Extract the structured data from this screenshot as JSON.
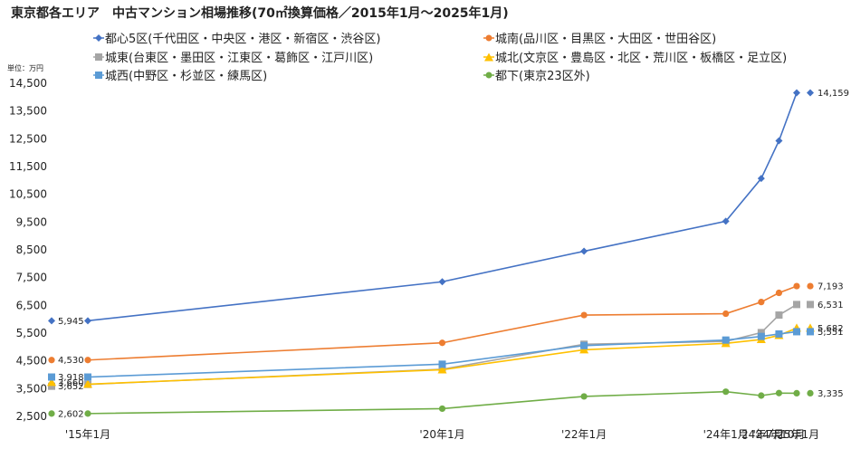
{
  "chart_data": {
    "type": "line",
    "title": "東京都各エリア　中古マンション相場推移(70㎡換算価格／2015年1月～2025年1月)",
    "unit_label": "単位：万円",
    "categories": [
      "'15年1月",
      "'20年1月",
      "'22年1月",
      "'24年1月",
      "'24年7月",
      "'24年10月",
      "'25年1月"
    ],
    "x_months": [
      0,
      60,
      84,
      108,
      114,
      117,
      120
    ],
    "ylim": [
      2500,
      14500
    ],
    "yticks": [
      "2,500",
      "3,500",
      "4,500",
      "5,500",
      "6,500",
      "7,500",
      "8,500",
      "9,500",
      "10,500",
      "11,500",
      "12,500",
      "13,500",
      "14,500"
    ],
    "ytick_values": [
      2500,
      3500,
      4500,
      5500,
      6500,
      7500,
      8500,
      9500,
      10500,
      11500,
      12500,
      13500,
      14500
    ],
    "grid": false,
    "legend_position": "top",
    "series": [
      {
        "name": "都心5区(千代田区・中央区・港区・新宿区・渋谷区)",
        "color": "#4472C4",
        "marker": "diamond",
        "values": [
          5945,
          7350,
          8450,
          9530,
          11070,
          12430,
          14159
        ],
        "start_label": "5,945",
        "end_label": "14,159"
      },
      {
        "name": "城南(品川区・目黒区・大田区・世田谷区)",
        "color": "#ED7D31",
        "marker": "circle",
        "values": [
          4530,
          5150,
          6150,
          6200,
          6620,
          6950,
          7193
        ],
        "start_label": "4,530",
        "end_label": "7,193"
      },
      {
        "name": "城東(台東区・墨田区・江東区・葛飾区・江戸川区)",
        "color": "#A5A5A5",
        "marker": "square",
        "values": [
          3652,
          4200,
          5100,
          5200,
          5520,
          6150,
          6531
        ],
        "start_label": "3,652",
        "end_label": "6,531"
      },
      {
        "name": "城北(文京区・豊島区・北区・荒川区・板橋区・足立区)",
        "color": "#FFC000",
        "marker": "triangle",
        "values": [
          3660,
          4180,
          4900,
          5130,
          5270,
          5420,
          5682
        ],
        "start_label": "3,660",
        "end_label": "5,682"
      },
      {
        "name": "城西(中野区・杉並区・練馬区)",
        "color": "#5B9BD5",
        "marker": "square",
        "values": [
          3918,
          4380,
          5050,
          5250,
          5380,
          5470,
          5551
        ],
        "start_label": "3,918",
        "end_label": "5,551"
      },
      {
        "name": "都下(東京23区外)",
        "color": "#70AD47",
        "marker": "circle",
        "values": [
          2602,
          2780,
          3220,
          3390,
          3250,
          3340,
          3335
        ],
        "start_label": "2,602",
        "end_label": "3,335"
      }
    ]
  }
}
